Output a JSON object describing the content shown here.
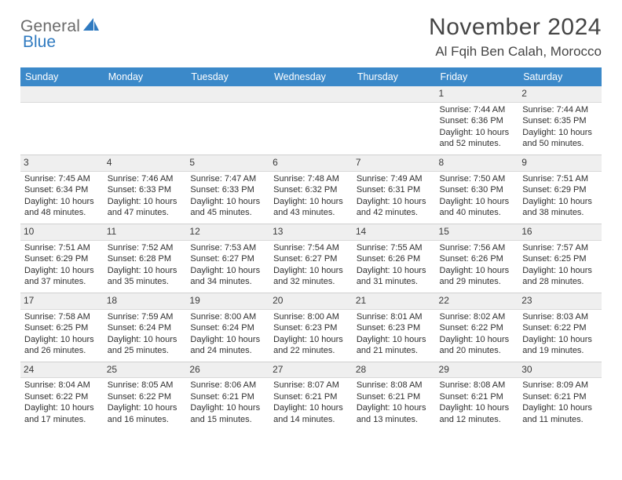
{
  "logo": {
    "word1": "General",
    "word2": "Blue"
  },
  "header": {
    "month_title": "November 2024",
    "location": "Al Fqih Ben Calah, Morocco"
  },
  "palette": {
    "header_bg": "#3b89c9",
    "header_text": "#ffffff",
    "daynum_bg": "#efefef",
    "body_text": "#2f2f2f",
    "title_text": "#454545"
  },
  "day_names": [
    "Sunday",
    "Monday",
    "Tuesday",
    "Wednesday",
    "Thursday",
    "Friday",
    "Saturday"
  ],
  "weeks": [
    [
      null,
      null,
      null,
      null,
      null,
      {
        "n": "1",
        "sr": "7:44 AM",
        "ss": "6:36 PM",
        "dl": "10 hours and 52 minutes."
      },
      {
        "n": "2",
        "sr": "7:44 AM",
        "ss": "6:35 PM",
        "dl": "10 hours and 50 minutes."
      }
    ],
    [
      {
        "n": "3",
        "sr": "7:45 AM",
        "ss": "6:34 PM",
        "dl": "10 hours and 48 minutes."
      },
      {
        "n": "4",
        "sr": "7:46 AM",
        "ss": "6:33 PM",
        "dl": "10 hours and 47 minutes."
      },
      {
        "n": "5",
        "sr": "7:47 AM",
        "ss": "6:33 PM",
        "dl": "10 hours and 45 minutes."
      },
      {
        "n": "6",
        "sr": "7:48 AM",
        "ss": "6:32 PM",
        "dl": "10 hours and 43 minutes."
      },
      {
        "n": "7",
        "sr": "7:49 AM",
        "ss": "6:31 PM",
        "dl": "10 hours and 42 minutes."
      },
      {
        "n": "8",
        "sr": "7:50 AM",
        "ss": "6:30 PM",
        "dl": "10 hours and 40 minutes."
      },
      {
        "n": "9",
        "sr": "7:51 AM",
        "ss": "6:29 PM",
        "dl": "10 hours and 38 minutes."
      }
    ],
    [
      {
        "n": "10",
        "sr": "7:51 AM",
        "ss": "6:29 PM",
        "dl": "10 hours and 37 minutes."
      },
      {
        "n": "11",
        "sr": "7:52 AM",
        "ss": "6:28 PM",
        "dl": "10 hours and 35 minutes."
      },
      {
        "n": "12",
        "sr": "7:53 AM",
        "ss": "6:27 PM",
        "dl": "10 hours and 34 minutes."
      },
      {
        "n": "13",
        "sr": "7:54 AM",
        "ss": "6:27 PM",
        "dl": "10 hours and 32 minutes."
      },
      {
        "n": "14",
        "sr": "7:55 AM",
        "ss": "6:26 PM",
        "dl": "10 hours and 31 minutes."
      },
      {
        "n": "15",
        "sr": "7:56 AM",
        "ss": "6:26 PM",
        "dl": "10 hours and 29 minutes."
      },
      {
        "n": "16",
        "sr": "7:57 AM",
        "ss": "6:25 PM",
        "dl": "10 hours and 28 minutes."
      }
    ],
    [
      {
        "n": "17",
        "sr": "7:58 AM",
        "ss": "6:25 PM",
        "dl": "10 hours and 26 minutes."
      },
      {
        "n": "18",
        "sr": "7:59 AM",
        "ss": "6:24 PM",
        "dl": "10 hours and 25 minutes."
      },
      {
        "n": "19",
        "sr": "8:00 AM",
        "ss": "6:24 PM",
        "dl": "10 hours and 24 minutes."
      },
      {
        "n": "20",
        "sr": "8:00 AM",
        "ss": "6:23 PM",
        "dl": "10 hours and 22 minutes."
      },
      {
        "n": "21",
        "sr": "8:01 AM",
        "ss": "6:23 PM",
        "dl": "10 hours and 21 minutes."
      },
      {
        "n": "22",
        "sr": "8:02 AM",
        "ss": "6:22 PM",
        "dl": "10 hours and 20 minutes."
      },
      {
        "n": "23",
        "sr": "8:03 AM",
        "ss": "6:22 PM",
        "dl": "10 hours and 19 minutes."
      }
    ],
    [
      {
        "n": "24",
        "sr": "8:04 AM",
        "ss": "6:22 PM",
        "dl": "10 hours and 17 minutes."
      },
      {
        "n": "25",
        "sr": "8:05 AM",
        "ss": "6:22 PM",
        "dl": "10 hours and 16 minutes."
      },
      {
        "n": "26",
        "sr": "8:06 AM",
        "ss": "6:21 PM",
        "dl": "10 hours and 15 minutes."
      },
      {
        "n": "27",
        "sr": "8:07 AM",
        "ss": "6:21 PM",
        "dl": "10 hours and 14 minutes."
      },
      {
        "n": "28",
        "sr": "8:08 AM",
        "ss": "6:21 PM",
        "dl": "10 hours and 13 minutes."
      },
      {
        "n": "29",
        "sr": "8:08 AM",
        "ss": "6:21 PM",
        "dl": "10 hours and 12 minutes."
      },
      {
        "n": "30",
        "sr": "8:09 AM",
        "ss": "6:21 PM",
        "dl": "10 hours and 11 minutes."
      }
    ]
  ],
  "labels": {
    "sunrise_prefix": "Sunrise: ",
    "sunset_prefix": "Sunset: ",
    "daylight_prefix": "Daylight: "
  }
}
